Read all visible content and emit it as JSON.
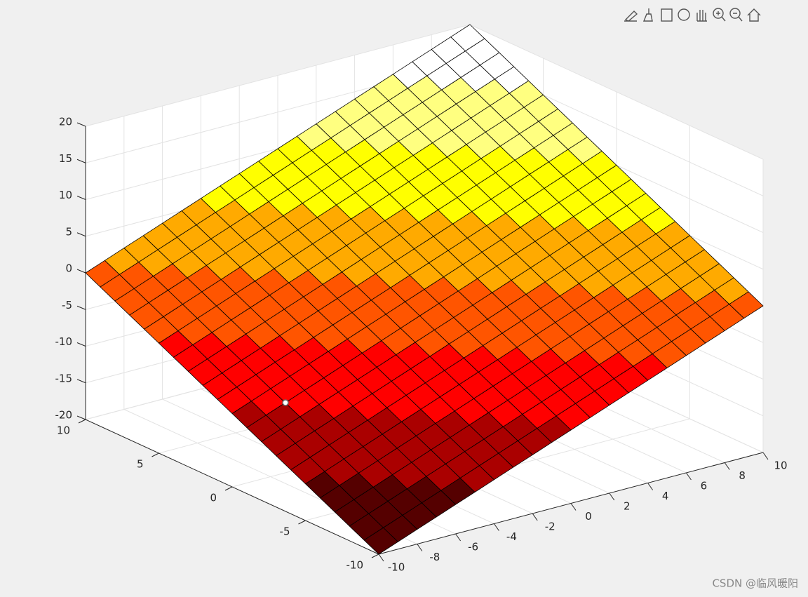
{
  "chart_data": {
    "type": "surface",
    "x": [
      -10,
      -9,
      -8,
      -7,
      -6,
      -5,
      -4,
      -3,
      -2,
      -1,
      0,
      1,
      2,
      3,
      4,
      5,
      6,
      7,
      8,
      9,
      10
    ],
    "y": [
      -10,
      -9,
      -8,
      -7,
      -6,
      -5,
      -4,
      -3,
      -2,
      -1,
      0,
      1,
      2,
      3,
      4,
      5,
      6,
      7,
      8,
      9,
      10
    ],
    "z": [
      [
        -20,
        -19,
        -18,
        -17,
        -16,
        -15,
        -14,
        -13,
        -12,
        -11,
        -10,
        -9,
        -8,
        -7,
        -6,
        -5,
        -4,
        -3,
        -2,
        -1,
        0
      ],
      [
        -19,
        -18,
        -17,
        -16,
        -15,
        -14,
        -13,
        -12,
        -11,
        -10,
        -9,
        -8,
        -7,
        -6,
        -5,
        -4,
        -3,
        -2,
        -1,
        0,
        1
      ],
      [
        -18,
        -17,
        -16,
        -15,
        -14,
        -13,
        -12,
        -11,
        -10,
        -9,
        -8,
        -7,
        -6,
        -5,
        -4,
        -3,
        -2,
        -1,
        0,
        1,
        2
      ],
      [
        -17,
        -16,
        -15,
        -14,
        -13,
        -12,
        -11,
        -10,
        -9,
        -8,
        -7,
        -6,
        -5,
        -4,
        -3,
        -2,
        -1,
        0,
        1,
        2,
        3
      ],
      [
        -16,
        -15,
        -14,
        -13,
        -12,
        -11,
        -10,
        -9,
        -8,
        -7,
        -6,
        -5,
        -4,
        -3,
        -2,
        -1,
        0,
        1,
        2,
        3,
        4
      ],
      [
        -15,
        -14,
        -13,
        -12,
        -11,
        -10,
        -9,
        -8,
        -7,
        -6,
        -5,
        -4,
        -3,
        -2,
        -1,
        0,
        1,
        2,
        3,
        4,
        5
      ],
      [
        -14,
        -13,
        -12,
        -11,
        -10,
        -9,
        -8,
        -7,
        -6,
        -5,
        -4,
        -3,
        -2,
        -1,
        0,
        1,
        2,
        3,
        4,
        5,
        6
      ],
      [
        -13,
        -12,
        -11,
        -10,
        -9,
        -8,
        -7,
        -6,
        -5,
        -4,
        -3,
        -2,
        -1,
        0,
        1,
        2,
        3,
        4,
        5,
        6,
        7
      ],
      [
        -12,
        -11,
        -10,
        -9,
        -8,
        -7,
        -6,
        -5,
        -4,
        -3,
        -2,
        -1,
        0,
        1,
        2,
        3,
        4,
        5,
        6,
        7,
        8
      ],
      [
        -11,
        -10,
        -9,
        -8,
        -7,
        -6,
        -5,
        -4,
        -3,
        -2,
        -1,
        0,
        1,
        2,
        3,
        4,
        5,
        6,
        7,
        8,
        9
      ],
      [
        -10,
        -9,
        -8,
        -7,
        -6,
        -5,
        -4,
        -3,
        -2,
        -1,
        0,
        1,
        2,
        3,
        4,
        5,
        6,
        7,
        8,
        9,
        10
      ],
      [
        -9,
        -8,
        -7,
        -6,
        -5,
        -4,
        -3,
        -2,
        -1,
        0,
        1,
        2,
        3,
        4,
        5,
        6,
        7,
        8,
        9,
        10,
        11
      ],
      [
        -8,
        -7,
        -6,
        -5,
        -4,
        -3,
        -2,
        -1,
        0,
        1,
        2,
        3,
        4,
        5,
        6,
        7,
        8,
        9,
        10,
        11,
        12
      ],
      [
        -7,
        -6,
        -5,
        -4,
        -3,
        -2,
        -1,
        0,
        1,
        2,
        3,
        4,
        5,
        6,
        7,
        8,
        9,
        10,
        11,
        12,
        13
      ],
      [
        -6,
        -5,
        -4,
        -3,
        -2,
        -1,
        0,
        1,
        2,
        3,
        4,
        5,
        6,
        7,
        8,
        9,
        10,
        11,
        12,
        13,
        14
      ],
      [
        -5,
        -4,
        -3,
        -2,
        -1,
        0,
        1,
        2,
        3,
        4,
        5,
        6,
        7,
        8,
        9,
        10,
        11,
        12,
        13,
        14,
        15
      ],
      [
        -4,
        -3,
        -2,
        -1,
        0,
        1,
        2,
        3,
        4,
        5,
        6,
        7,
        8,
        9,
        10,
        11,
        12,
        13,
        14,
        15,
        16
      ],
      [
        -3,
        -2,
        -1,
        0,
        1,
        2,
        3,
        4,
        5,
        6,
        7,
        8,
        9,
        10,
        11,
        12,
        13,
        14,
        15,
        16,
        17
      ],
      [
        -2,
        -1,
        0,
        1,
        2,
        3,
        4,
        5,
        6,
        7,
        8,
        9,
        10,
        11,
        12,
        13,
        14,
        15,
        16,
        17,
        18
      ],
      [
        -1,
        0,
        1,
        2,
        3,
        4,
        5,
        6,
        7,
        8,
        9,
        10,
        11,
        12,
        13,
        14,
        15,
        16,
        17,
        18,
        19
      ],
      [
        0,
        1,
        2,
        3,
        4,
        5,
        6,
        7,
        8,
        9,
        10,
        11,
        12,
        13,
        14,
        15,
        16,
        17,
        18,
        19,
        20
      ]
    ],
    "colormap": [
      "#550000",
      "#aa0000",
      "#ff0000",
      "#ff5500",
      "#ffaa00",
      "#ffff00",
      "#ffff80",
      "#ffffff"
    ],
    "xlim": [
      -10,
      10
    ],
    "ylim": [
      -10,
      10
    ],
    "zlim": [
      -20,
      20
    ],
    "xticks": [
      -10,
      -8,
      -6,
      -4,
      -2,
      0,
      2,
      4,
      6,
      8,
      10
    ],
    "yticks": [
      -10,
      -5,
      0,
      5,
      10
    ],
    "zticks": [
      -20,
      -15,
      -10,
      -5,
      0,
      5,
      10,
      15,
      20
    ],
    "grid": true
  },
  "watermark": "CSDN @临风暖阳"
}
